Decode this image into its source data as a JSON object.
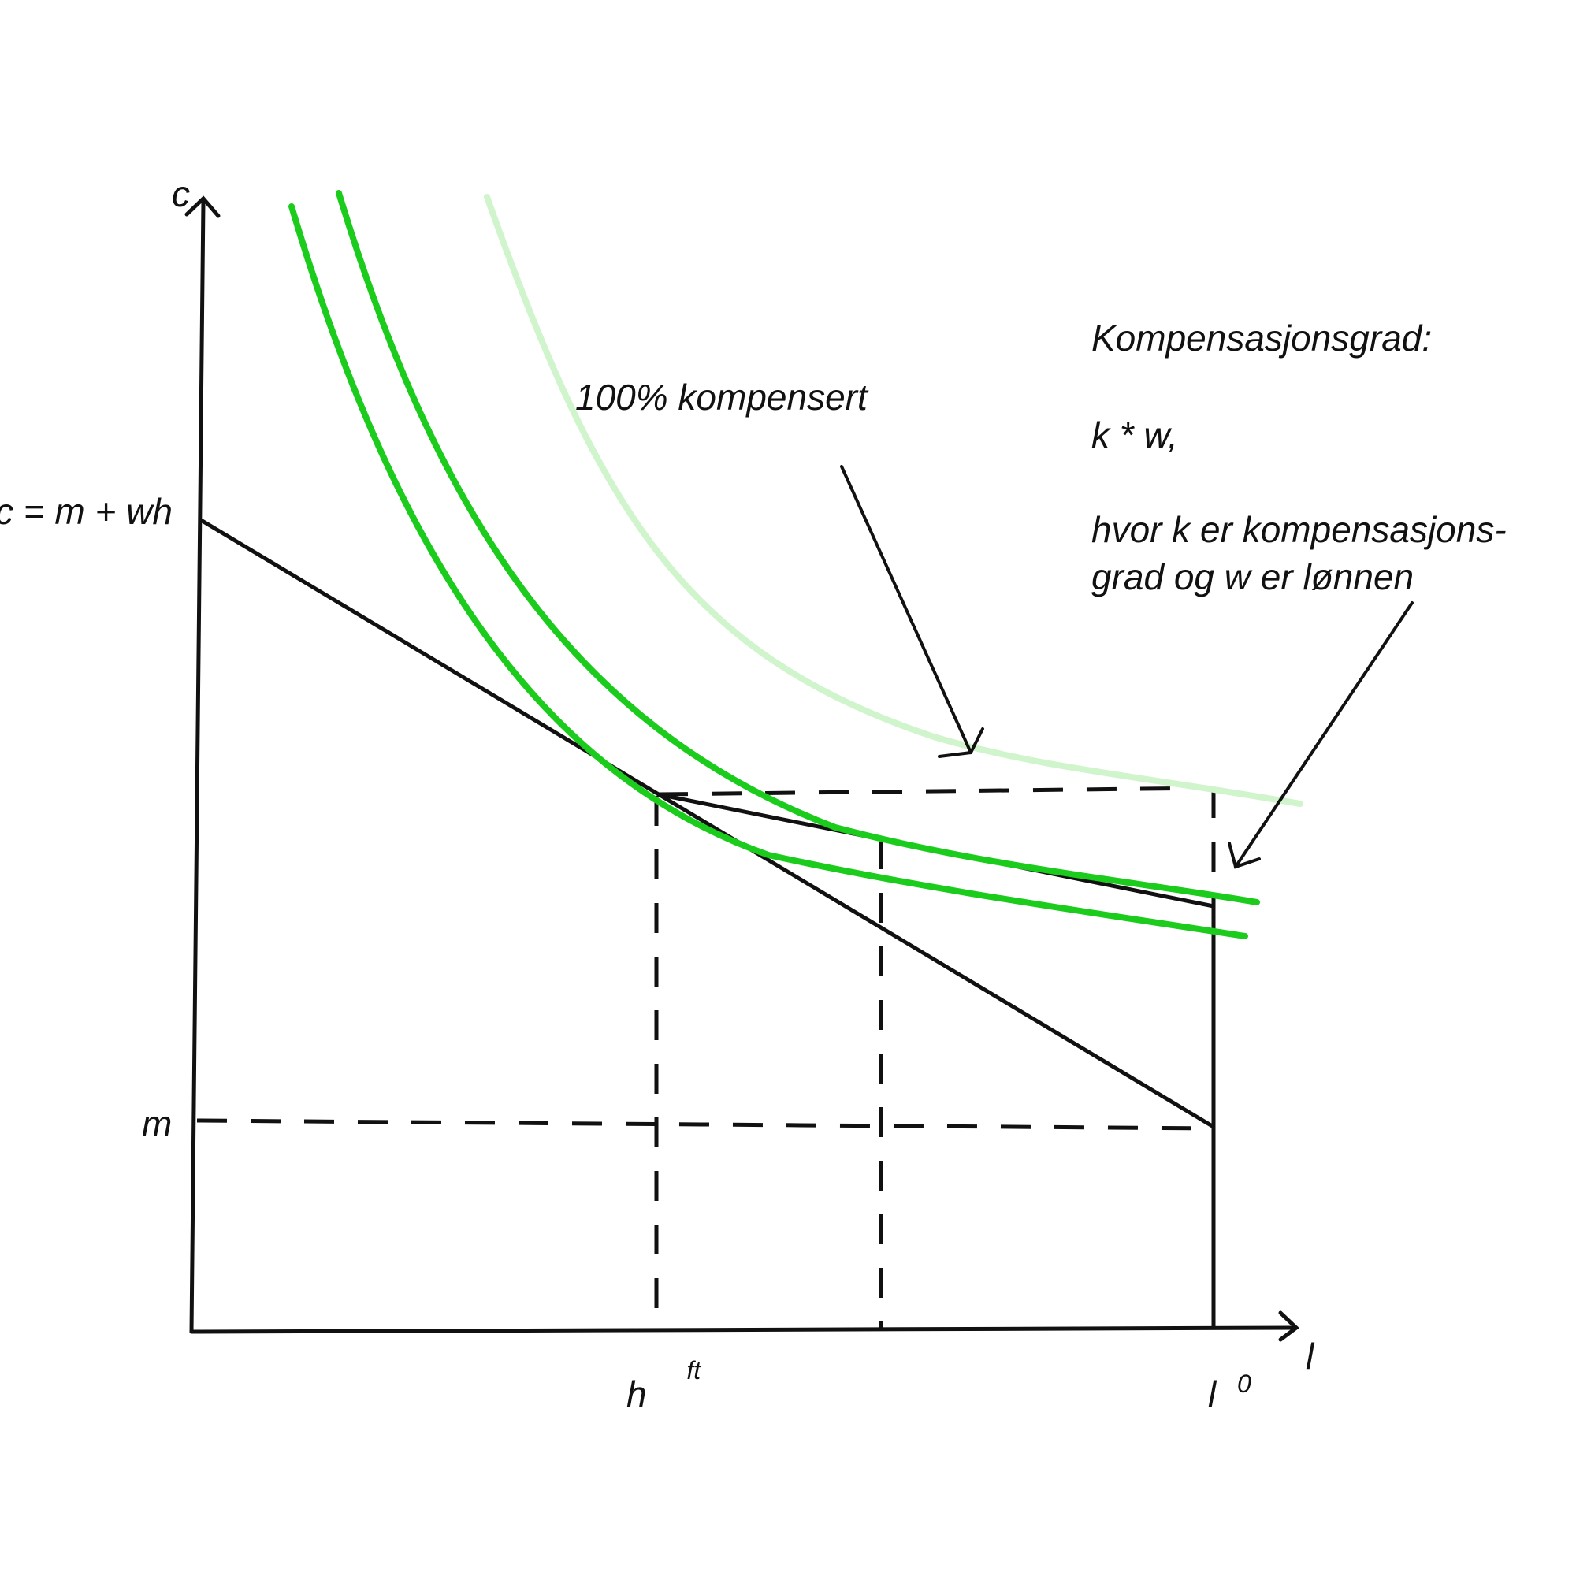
{
  "labels": {
    "y_axis": "c",
    "x_axis": "l",
    "budget_line": "c = m + wh",
    "m_level": "m",
    "h_base": "h",
    "h_sup": "ft",
    "l_base": "l",
    "l_sup": "0",
    "full_comp": "100% kompensert"
  },
  "note": {
    "title": "Kompensasjonsgrad:",
    "formula": "k * w,",
    "line1": "hvor k er kompensasjons-",
    "line2": "grad og w er lønnen"
  },
  "colors": {
    "axis": "#111111",
    "indiff_strong": "#1ccc1c",
    "indiff_light": "#d0f5cc"
  }
}
